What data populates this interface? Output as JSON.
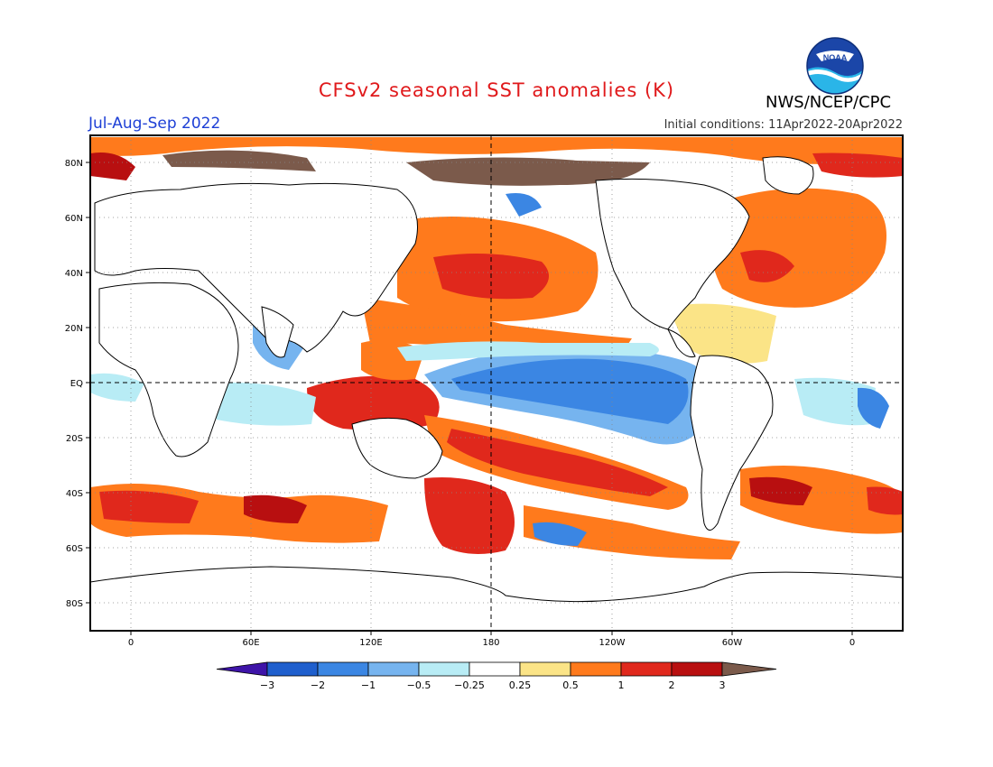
{
  "header": {
    "title": "CFSv2 seasonal SST anomalies (K)",
    "season": "Jul-Aug-Sep 2022",
    "initial_conditions": "Initial conditions: 11Apr2022-20Apr2022",
    "agency": "NWS/NCEP/CPC",
    "logo_text": "NOAA"
  },
  "map": {
    "lat_labels": [
      "80N",
      "60N",
      "40N",
      "20N",
      "EQ",
      "20S",
      "40S",
      "60S",
      "80S"
    ],
    "lon_labels": [
      "0",
      "60E",
      "120E",
      "180",
      "120W",
      "60W",
      "0"
    ]
  },
  "colorbar": {
    "labels": [
      "-3",
      "-2",
      "-1",
      "-0.5",
      "-0.25",
      "0.25",
      "0.5",
      "1",
      "2",
      "3"
    ],
    "colors": [
      "#3e14a8",
      "#1f5fcd",
      "#3b86e3",
      "#76b4ef",
      "#b8ecf5",
      "#ffffff",
      "#fbe487",
      "#ff7a1c",
      "#e0281c",
      "#b80f10",
      "#7b5a4b"
    ]
  },
  "colors": {
    "title": "#e0191b",
    "season": "#1d3fd6",
    "land_outline": "#000000"
  }
}
